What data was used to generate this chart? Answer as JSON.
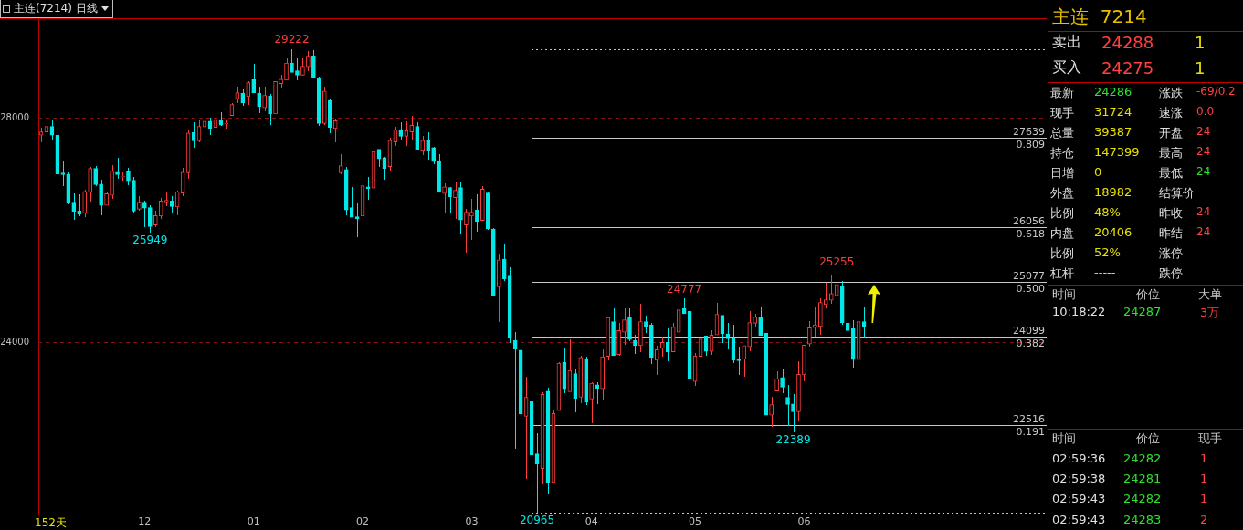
{
  "chart_data": [
    {
      "type": "candlestick",
      "title": "主连(7214)",
      "subtitle": "日线",
      "categories": [
        null,
        null,
        null,
        null,
        null,
        null,
        null,
        null,
        null,
        null,
        null,
        null,
        null,
        null,
        null,
        null,
        null,
        null,
        null,
        "12",
        null,
        null,
        null,
        null,
        null,
        null,
        null,
        null,
        null,
        null,
        null,
        null,
        null,
        null,
        null,
        null,
        null,
        null,
        null,
        "01",
        null,
        null,
        null,
        null,
        null,
        null,
        null,
        null,
        null,
        null,
        null,
        null,
        null,
        null,
        null,
        null,
        null,
        null,
        null,
        "02",
        null,
        null,
        null,
        null,
        null,
        null,
        null,
        null,
        null,
        null,
        null,
        null,
        null,
        null,
        null,
        null,
        null,
        null,
        null,
        "03",
        null,
        null,
        null,
        null,
        null,
        null,
        null,
        null,
        null,
        null,
        null,
        null,
        null,
        null,
        null,
        null,
        null,
        null,
        null,
        null,
        null,
        "04",
        null,
        null,
        null,
        null,
        null,
        null,
        null,
        null,
        null,
        null,
        null,
        null,
        null,
        null,
        null,
        null,
        null,
        null,
        "05",
        null,
        null,
        null,
        null,
        null,
        null,
        null,
        null,
        null,
        null,
        null,
        null,
        null,
        null,
        null,
        null,
        null,
        null,
        null,
        "06",
        null,
        null,
        null,
        null,
        null,
        null,
        null,
        null,
        null,
        null,
        null,
        null,
        null,
        null,
        null,
        null,
        null,
        null,
        null,
        null,
        null,
        null,
        null,
        null,
        null,
        null,
        null,
        null,
        null,
        null,
        null,
        null,
        null,
        null,
        null,
        null,
        null,
        null,
        null,
        null,
        null,
        null,
        null,
        null
      ],
      "ohlc": [
        [
          27690,
          27820,
          27560,
          27750
        ],
        [
          27750,
          27960,
          27560,
          27850
        ],
        [
          27850,
          27960,
          27600,
          27690
        ],
        [
          27690,
          27730,
          26810,
          27000
        ],
        [
          27020,
          27230,
          26780,
          26990
        ],
        [
          27000,
          27030,
          26460,
          26480
        ],
        [
          26500,
          26650,
          26190,
          26330
        ],
        [
          26340,
          26630,
          26250,
          26280
        ],
        [
          26300,
          26720,
          26230,
          26690
        ],
        [
          26670,
          27130,
          26500,
          27100
        ],
        [
          27100,
          27140,
          26780,
          26810
        ],
        [
          26820,
          26890,
          26260,
          26440
        ],
        [
          26440,
          26690,
          26440,
          26650
        ],
        [
          26620,
          27160,
          26550,
          27050
        ],
        [
          27030,
          27290,
          26920,
          26990
        ],
        [
          26950,
          27030,
          26880,
          26960
        ],
        [
          27050,
          27110,
          26800,
          26880
        ],
        [
          26890,
          26940,
          26320,
          26340
        ],
        [
          26370,
          26600,
          26340,
          26500
        ],
        [
          26500,
          26520,
          26060,
          26390
        ],
        [
          26400,
          26440,
          25949,
          26060
        ],
        [
          26090,
          26340,
          26060,
          26260
        ],
        [
          26250,
          26570,
          26200,
          26520
        ],
        [
          26500,
          26680,
          26420,
          26530
        ],
        [
          26520,
          26600,
          26300,
          26420
        ],
        [
          26410,
          26710,
          26260,
          26680
        ],
        [
          26660,
          27110,
          26600,
          27030
        ],
        [
          27020,
          27770,
          26920,
          27730
        ],
        [
          27740,
          27920,
          27460,
          27590
        ],
        [
          27590,
          27950,
          27570,
          27850
        ],
        [
          27840,
          28050,
          27780,
          27940
        ],
        [
          27940,
          28000,
          27700,
          27810
        ],
        [
          27830,
          28030,
          27760,
          27970
        ],
        [
          27970,
          28100,
          27850,
          27870
        ],
        [
          27890,
          27950,
          27810,
          27900
        ],
        [
          28040,
          28270,
          28040,
          28240
        ],
        [
          28340,
          28560,
          28270,
          28450
        ],
        [
          28440,
          28500,
          28210,
          28270
        ],
        [
          28380,
          28660,
          28230,
          28630
        ],
        [
          28680,
          28970,
          28440,
          28450
        ],
        [
          28440,
          28560,
          28090,
          28200
        ],
        [
          28180,
          28550,
          28110,
          28400
        ],
        [
          28390,
          28420,
          27880,
          28070
        ],
        [
          28070,
          28660,
          28070,
          28650
        ],
        [
          28610,
          28760,
          28520,
          28690
        ],
        [
          28670,
          29060,
          28670,
          28980
        ],
        [
          28980,
          29222,
          28810,
          28810
        ],
        [
          28840,
          29060,
          28670,
          28760
        ],
        [
          28760,
          29060,
          28750,
          28920
        ],
        [
          28910,
          29190,
          28840,
          29100
        ],
        [
          29110,
          29200,
          28700,
          28720
        ],
        [
          28720,
          28730,
          27850,
          27900
        ],
        [
          27900,
          28550,
          27880,
          28480
        ],
        [
          28310,
          28350,
          27720,
          27830
        ],
        [
          27810,
          27980,
          27570,
          27950
        ],
        [
          27020,
          27350,
          27000,
          27150
        ],
        [
          27080,
          27130,
          26260,
          26360
        ],
        [
          26400,
          26770,
          26230,
          26230
        ],
        [
          26240,
          26480,
          25880,
          26200
        ],
        [
          26250,
          26790,
          26210,
          26790
        ],
        [
          26770,
          26950,
          26540,
          26740
        ],
        [
          26750,
          27600,
          26750,
          27400
        ],
        [
          27440,
          27440,
          27130,
          27270
        ],
        [
          27290,
          27300,
          26900,
          27100
        ],
        [
          27130,
          27650,
          27050,
          27600
        ],
        [
          27570,
          27840,
          27500,
          27790
        ],
        [
          27790,
          27920,
          27600,
          27670
        ],
        [
          27670,
          27940,
          27500,
          27770
        ],
        [
          27750,
          28030,
          27590,
          27870
        ],
        [
          27850,
          27920,
          27440,
          27440
        ],
        [
          27420,
          27680,
          27340,
          27600
        ],
        [
          27610,
          27740,
          27260,
          27420
        ],
        [
          27470,
          27480,
          27170,
          27220
        ],
        [
          27240,
          27350,
          26670,
          26670
        ],
        [
          26650,
          26840,
          26310,
          26770
        ],
        [
          26760,
          26760,
          26300,
          26590
        ],
        [
          26580,
          26860,
          26200,
          26710
        ],
        [
          26760,
          26860,
          25930,
          26180
        ],
        [
          26090,
          26370,
          25590,
          26320
        ],
        [
          26250,
          26550,
          25830,
          26320
        ],
        [
          26360,
          26630,
          25970,
          26150
        ],
        [
          26170,
          26790,
          26170,
          26730
        ],
        [
          26660,
          26690,
          26000,
          26020
        ],
        [
          26020,
          26040,
          24810,
          24840
        ],
        [
          24990,
          25580,
          24360,
          25470
        ],
        [
          25480,
          25760,
          25090,
          25130
        ],
        [
          25180,
          25340,
          23990,
          24070
        ],
        [
          24030,
          24180,
          22100,
          23880
        ],
        [
          23860,
          24760,
          22650,
          22720
        ],
        [
          22680,
          23390,
          21570,
          23020
        ],
        [
          22940,
          23420,
          21990,
          21990
        ],
        [
          22010,
          22380,
          20965,
          21830
        ],
        [
          21750,
          23110,
          21470,
          23070
        ],
        [
          23130,
          23190,
          21280,
          21490
        ],
        [
          21500,
          22790,
          21490,
          22730
        ],
        [
          22780,
          23640,
          22780,
          23630
        ],
        [
          23640,
          23890,
          23090,
          23170
        ],
        [
          23120,
          24050,
          23120,
          23500
        ],
        [
          23440,
          23520,
          22750,
          23000
        ],
        [
          23020,
          23760,
          22910,
          23730
        ],
        [
          23710,
          23740,
          22880,
          22930
        ],
        [
          22990,
          23290,
          22550,
          23270
        ],
        [
          23240,
          23290,
          22890,
          23180
        ],
        [
          23170,
          23870,
          22960,
          23740
        ],
        [
          23750,
          24450,
          23680,
          24440
        ],
        [
          24370,
          24610,
          23760,
          23760
        ],
        [
          23780,
          24350,
          23760,
          24210
        ],
        [
          24180,
          24610,
          23960,
          24400
        ],
        [
          24440,
          24610,
          24020,
          24050
        ],
        [
          24030,
          24130,
          23800,
          23940
        ],
        [
          23940,
          24690,
          23830,
          24370
        ],
        [
          24370,
          24480,
          24170,
          24280
        ],
        [
          24310,
          24350,
          23620,
          23730
        ],
        [
          23680,
          23940,
          23410,
          23870
        ],
        [
          23890,
          24100,
          23750,
          24000
        ],
        [
          24000,
          24240,
          23670,
          23830
        ],
        [
          23830,
          24340,
          23830,
          24270
        ],
        [
          24180,
          24580,
          24050,
          24580
        ],
        [
          24600,
          24777,
          24510,
          24510
        ],
        [
          24550,
          24760,
          23300,
          23350
        ],
        [
          23300,
          23810,
          23230,
          23760
        ],
        [
          23750,
          24140,
          23600,
          24060
        ],
        [
          24110,
          24110,
          23760,
          23840
        ],
        [
          23840,
          24210,
          23780,
          24130
        ],
        [
          24130,
          24710,
          24130,
          24500
        ],
        [
          24480,
          24480,
          23980,
          24150
        ],
        [
          24150,
          24350,
          23880,
          24060
        ],
        [
          24080,
          24310,
          23630,
          23680
        ],
        [
          23710,
          23920,
          23410,
          23670
        ],
        [
          23700,
          23940,
          23380,
          23940
        ],
        [
          23920,
          24560,
          23840,
          24350
        ],
        [
          24340,
          24500,
          24260,
          24450
        ],
        [
          24450,
          24640,
          24120,
          24120
        ],
        [
          24160,
          24160,
          22700,
          22700
        ],
        [
          22700,
          23030,
          22490,
          22890
        ],
        [
          23130,
          23480,
          23130,
          23350
        ],
        [
          23370,
          23520,
          23100,
          23200
        ],
        [
          23020,
          23240,
          22510,
          22890
        ],
        [
          22900,
          23080,
          22389,
          22760
        ],
        [
          22760,
          23660,
          22600,
          23430
        ],
        [
          23420,
          23950,
          23310,
          23950
        ],
        [
          23970,
          24370,
          23920,
          24260
        ],
        [
          24260,
          24630,
          24100,
          24310
        ],
        [
          24280,
          24790,
          24130,
          24710
        ],
        [
          24670,
          25060,
          24600,
          24760
        ],
        [
          24750,
          25190,
          24680,
          24870
        ],
        [
          24830,
          25255,
          24720,
          25030
        ],
        [
          25000,
          25100,
          24320,
          24350
        ],
        [
          24340,
          24500,
          23770,
          24210
        ],
        [
          24240,
          24390,
          23550,
          23690
        ],
        [
          23690,
          24480,
          23660,
          24370
        ],
        [
          24370,
          24640,
          24080,
          24270
        ],
        null,
        null,
        null,
        null,
        null,
        null,
        null,
        null,
        null,
        null,
        null,
        null,
        null,
        null,
        null,
        null,
        null,
        null,
        null,
        null,
        null,
        null,
        null,
        null,
        null,
        null,
        null,
        null,
        null,
        null,
        null,
        null,
        null
      ],
      "colors": [
        "#ff3c3c",
        "#ff3c3c",
        "#00e8e8",
        "#00e8e8",
        "#00e8e8",
        "#00e8e8",
        "#00e8e8",
        "#00e8e8",
        "#ff3c3c",
        "#ff3c3c",
        "#00e8e8",
        "#00e8e8",
        "#ff3c3c",
        "#ff3c3c",
        "#00e8e8",
        "#ff3c3c",
        "#00e8e8",
        "#00e8e8",
        "#ff3c3c",
        "#00e8e8",
        "#00e8e8",
        "#ff3c3c",
        "#ff3c3c",
        "#ff3c3c",
        "#00e8e8",
        "#ff3c3c",
        "#ff3c3c",
        "#ff3c3c",
        "#00e8e8",
        "#ff3c3c",
        "#ff3c3c",
        "#00e8e8",
        "#ff3c3c",
        "#00e8e8",
        "#ff3c3c",
        "#ff3c3c",
        "#ff3c3c",
        "#00e8e8",
        "#ff3c3c",
        "#00e8e8",
        "#00e8e8",
        "#ff3c3c",
        "#00e8e8",
        "#ff3c3c",
        "#ff3c3c",
        "#ff3c3c",
        "#00e8e8",
        "#00e8e8",
        "#ff3c3c",
        "#ff3c3c",
        "#00e8e8",
        "#00e8e8",
        "#ff3c3c",
        "#00e8e8",
        "#ff3c3c",
        "#ff3c3c",
        "#00e8e8",
        "#00e8e8",
        "#00e8e8",
        "#ff3c3c",
        "#00e8e8",
        "#ff3c3c",
        "#00e8e8",
        "#00e8e8",
        "#ff3c3c",
        "#ff3c3c",
        "#00e8e8",
        "#ff3c3c",
        "#ff3c3c",
        "#00e8e8",
        "#ff3c3c",
        "#00e8e8",
        "#00e8e8",
        "#00e8e8",
        "#ff3c3c",
        "#00e8e8",
        "#ff3c3c",
        "#00e8e8",
        "#ff3c3c",
        "#ff3c3c",
        "#00e8e8",
        "#ff3c3c",
        "#00e8e8",
        "#00e8e8",
        "#ff3c3c",
        "#00e8e8",
        "#00e8e8",
        "#00e8e8",
        "#00e8e8",
        "#ff3c3c",
        "#00e8e8",
        "#00e8e8",
        "#ff3c3c",
        "#00e8e8",
        "#ff3c3c",
        "#ff3c3c",
        "#00e8e8",
        "#ff3c3c",
        "#00e8e8",
        "#ff3c3c",
        "#00e8e8",
        "#ff3c3c",
        "#00e8e8",
        "#ff3c3c",
        "#ff3c3c",
        "#00e8e8",
        "#ff3c3c",
        "#ff3c3c",
        "#00e8e8",
        "#00e8e8",
        "#ff3c3c",
        "#00e8e8",
        "#00e8e8",
        "#ff3c3c",
        "#ff3c3c",
        "#00e8e8",
        "#ff3c3c",
        "#ff3c3c",
        "#00e8e8",
        "#00e8e8",
        "#ff3c3c",
        "#ff3c3c",
        "#00e8e8",
        "#ff3c3c",
        "#ff3c3c",
        "#00e8e8",
        "#00e8e8",
        "#00e8e8",
        "#00e8e8",
        "#ff3c3c",
        "#ff3c3c",
        "#ff3c3c",
        "#00e8e8",
        "#00e8e8",
        "#ff3c3c",
        "#ff3c3c",
        "#00e8e8",
        "#00e8e8",
        "#00e8e8",
        "#ff3c3c",
        "#ff3c3c",
        "#ff3c3c",
        "#ff3c3c",
        "#ff3c3c",
        "#ff3c3c",
        "#ff3c3c",
        "#ff3c3c",
        "#00e8e8",
        "#00e8e8",
        "#00e8e8",
        "#ff3c3c",
        "#00e8e8",
        null,
        null,
        null,
        null,
        null,
        null,
        null,
        null,
        null,
        null,
        null,
        null,
        null,
        null,
        null,
        null,
        null,
        null,
        null,
        null,
        null,
        null,
        null,
        null,
        null,
        null,
        null,
        null,
        null,
        null,
        null,
        null,
        null
      ],
      "ylim": [
        20930,
        29760
      ],
      "yticks": [
        28000,
        24000
      ],
      "grid": "y",
      "ref_lines": [
        {
          "axis": "y",
          "value": 29222,
          "line_style": "dotted",
          "color": "#c8c8c8"
        },
        {
          "axis": "y",
          "value": 27639,
          "label": "27639\n0.809",
          "line_style": "solid",
          "color": "#c8c8c8"
        },
        {
          "axis": "y",
          "value": 26056,
          "label": "26056\n0.618",
          "line_style": "solid",
          "color": "#c8c8c8"
        },
        {
          "axis": "y",
          "value": 25077,
          "label": "25077\n0.500",
          "line_style": "solid",
          "color": "#c8c8c8"
        },
        {
          "axis": "y",
          "value": 24099,
          "label": "24099\n0.382",
          "line_style": "solid",
          "color": "#c8c8c8"
        },
        {
          "axis": "y",
          "value": 22516,
          "label": "22516\n0.191",
          "line_style": "solid",
          "color": "#c8c8c8"
        },
        {
          "axis": "y",
          "value": 20965,
          "line_style": "dotted",
          "color": "#c8c8c8"
        }
      ],
      "annotations": [
        {
          "text": "29222",
          "y": 29222
        },
        {
          "text": "25949",
          "y": 25949
        },
        {
          "text": "24777",
          "y": 24777
        },
        {
          "text": "20965",
          "y": 20965
        },
        {
          "text": "22389",
          "y": 22389
        },
        {
          "text": "25255",
          "y": 25255
        },
        "152天"
      ],
      "legend": false
    },
    {
      "type": "other",
      "title": "主连  7214",
      "annotations": [
        "卖出",
        "24288",
        "1",
        "买入",
        "24275",
        "1",
        "最新",
        "24286",
        "涨跌",
        "-69/0.2",
        "现手",
        "31724",
        "速涨",
        "0.0",
        "总量",
        "39387",
        "开盘",
        "24",
        "持仓",
        "147399",
        "最高",
        "24",
        "日增",
        "0",
        "最低",
        "24",
        "外盘",
        "18982",
        "结算价",
        "比例",
        "48%",
        "昨收",
        "24",
        "内盘",
        "20406",
        "昨结",
        "24",
        "比例",
        "52%",
        "涨停",
        "杠杆",
        "-----",
        "跌停",
        "时间",
        "价位",
        "大单",
        "10:18:22",
        "24287",
        "3万",
        "时间",
        "价位",
        "现手",
        "02:59:36",
        "24282",
        "1",
        "02:59:38",
        "24281",
        "1",
        "02:59:43",
        "24282",
        "1",
        "02:59:43",
        "24283",
        "2"
      ]
    }
  ]
}
